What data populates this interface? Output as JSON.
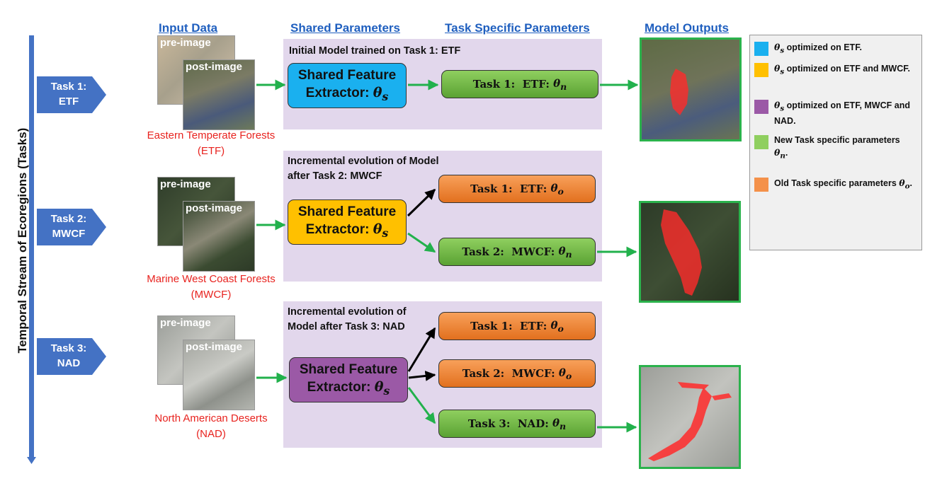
{
  "headers": {
    "input": "Input Data",
    "shared": "Shared Parameters",
    "task_specific": "Task Specific Parameters",
    "outputs": "Model Outputs"
  },
  "timeline_label": "Temporal Stream of Ecoregions (Tasks)",
  "common": {
    "pre_image": "pre-image",
    "post_image": "post-image",
    "shared_line1": "Shared Feature",
    "shared_line2": "Extractor: θs"
  },
  "rows": [
    {
      "task_line1": "Task 1:",
      "task_line2": "ETF",
      "region_line1": "Eastern Temperate Forests",
      "region_line2": "(ETF)",
      "panel_title_line1": "Initial Model trained on Task 1: ETF",
      "panel_title_line2": "",
      "shared_color": "#1ab0ef",
      "heads": [
        {
          "label": "Task 1:  ETF:  θn",
          "kind": "new"
        }
      ]
    },
    {
      "task_line1": "Task 2:",
      "task_line2": "MWCF",
      "region_line1": "Marine West Coast Forests",
      "region_line2": "(MWCF)",
      "panel_title_line1": "Incremental evolution of Model",
      "panel_title_line2": "after Task 2: MWCF",
      "shared_color": "#ffc000",
      "heads": [
        {
          "label": "Task 1:  ETF:  θo",
          "kind": "old"
        },
        {
          "label": "Task 2:  MWCF:  θn",
          "kind": "new"
        }
      ]
    },
    {
      "task_line1": "Task 3:",
      "task_line2": "NAD",
      "region_line1": "North American Deserts",
      "region_line2": "(NAD)",
      "panel_title_line1": "Incremental evolution of",
      "panel_title_line2": "Model after Task 3: NAD",
      "shared_color": "#9b59a6",
      "heads": [
        {
          "label": "Task 1:  ETF:  θo",
          "kind": "old"
        },
        {
          "label": "Task 2:  MWCF:  θo",
          "kind": "old"
        },
        {
          "label": "Task 3:  NAD:  θn",
          "kind": "new"
        }
      ]
    }
  ],
  "legend": [
    {
      "color": "#1ab0ef",
      "text": "θs optimized on ETF."
    },
    {
      "color": "#ffc000",
      "text": "θs optimized on ETF and MWCF."
    },
    {
      "color": "#9b59a6",
      "text": "θs optimized on ETF, MWCF and NAD."
    },
    {
      "color": "#8fcf5f",
      "text": "New Task specific parameters θn."
    },
    {
      "color": "#f4914a",
      "text": "Old Task specific parameters θo."
    }
  ]
}
